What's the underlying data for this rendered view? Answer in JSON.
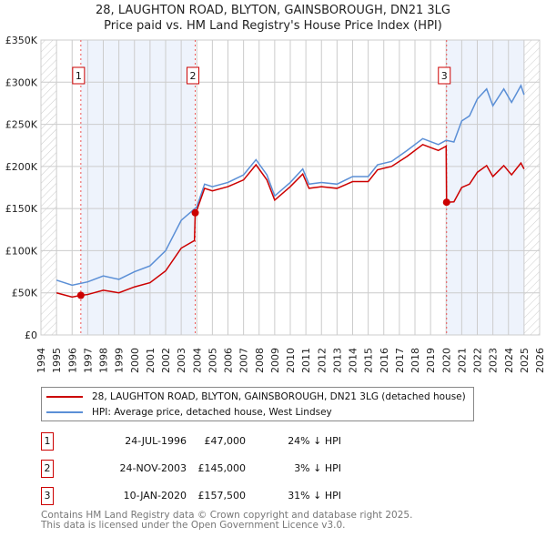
{
  "title_line1": "28, LAUGHTON ROAD, BLYTON, GAINSBOROUGH, DN21 3LG",
  "title_line2": "Price paid vs. HM Land Registry's House Price Index (HPI)",
  "colors": {
    "property": "#cc0000",
    "hpi": "#5b8fd6",
    "shade": "#eef3fc"
  },
  "chart_data": {
    "type": "line",
    "xlim": [
      1994,
      2026
    ],
    "ylim": [
      0,
      350000
    ],
    "x_ticks": [
      1994,
      1995,
      1996,
      1997,
      1998,
      1999,
      2000,
      2001,
      2002,
      2003,
      2004,
      2005,
      2006,
      2007,
      2008,
      2009,
      2010,
      2011,
      2012,
      2013,
      2014,
      2015,
      2016,
      2017,
      2018,
      2019,
      2020,
      2021,
      2022,
      2023,
      2024,
      2025,
      2026
    ],
    "y_ticks": [
      {
        "v": 0,
        "label": "£0"
      },
      {
        "v": 50000,
        "label": "£50K"
      },
      {
        "v": 100000,
        "label": "£100K"
      },
      {
        "v": 150000,
        "label": "£150K"
      },
      {
        "v": 200000,
        "label": "£200K"
      },
      {
        "v": 250000,
        "label": "£250K"
      },
      {
        "v": 300000,
        "label": "£300K"
      },
      {
        "v": 350000,
        "label": "£350K"
      }
    ],
    "grid": true,
    "data_range": [
      1995,
      2025
    ],
    "series": [
      {
        "name": "28, LAUGHTON ROAD, BLYTON, GAINSBOROUGH, DN21 3LG (detached house)",
        "color": "#cc0000",
        "x": [
          1995,
          1996,
          1996.56,
          1997,
          1998,
          1999,
          2000,
          2001,
          2002,
          2003,
          2003.85,
          2003.9,
          2004,
          2004.5,
          2005,
          2006,
          2007,
          2007.8,
          2008.5,
          2009,
          2010,
          2010.8,
          2011.2,
          2012,
          2013,
          2014,
          2015,
          2015.6,
          2016.5,
          2017.5,
          2018.5,
          2019.5,
          2020.0,
          2020.03,
          2020.5,
          2021,
          2021.5,
          2022,
          2022.6,
          2023,
          2023.7,
          2024.2,
          2024.8,
          2025
        ],
        "y": [
          50000,
          45000,
          47000,
          48000,
          53000,
          50000,
          57000,
          62000,
          76000,
          103000,
          112000,
          145000,
          148000,
          174000,
          171000,
          176000,
          184000,
          202000,
          184000,
          160000,
          176000,
          191000,
          174000,
          176000,
          174000,
          182000,
          182000,
          196000,
          200000,
          212000,
          226000,
          219000,
          224000,
          157500,
          158000,
          175000,
          179000,
          193000,
          201000,
          188000,
          201000,
          190000,
          204000,
          197000
        ]
      },
      {
        "name": "HPI: Average price, detached house, West Lindsey",
        "color": "#5b8fd6",
        "x": [
          1995,
          1996,
          1997,
          1998,
          1999,
          2000,
          2001,
          2002,
          2003,
          2004,
          2004.5,
          2005,
          2006,
          2007,
          2007.8,
          2008.5,
          2009,
          2010,
          2010.8,
          2011.2,
          2012,
          2013,
          2014,
          2015,
          2015.6,
          2016.5,
          2017.5,
          2018.5,
          2019.5,
          2020,
          2020.5,
          2021,
          2021.5,
          2022,
          2022.6,
          2023,
          2023.7,
          2024.2,
          2024.8,
          2025
        ],
        "y": [
          65000,
          59000,
          63000,
          70000,
          66000,
          75000,
          82000,
          100000,
          136000,
          152000,
          179000,
          176000,
          181000,
          190000,
          208000,
          190000,
          165000,
          181000,
          197000,
          179000,
          181000,
          179000,
          188000,
          188000,
          202000,
          206000,
          219000,
          233000,
          226000,
          231000,
          229000,
          254000,
          260000,
          280000,
          292000,
          272000,
          292000,
          276000,
          296000,
          285000
        ]
      }
    ],
    "sales": [
      {
        "label": "1",
        "x": 1996.56,
        "price": 47000
      },
      {
        "label": "2",
        "x": 2003.9,
        "price": 145000
      },
      {
        "label": "3",
        "x": 2020.03,
        "price": 157500
      }
    ]
  },
  "legend": {
    "property": "28, LAUGHTON ROAD, BLYTON, GAINSBOROUGH, DN21 3LG (detached house)",
    "hpi": "HPI: Average price, detached house, West Lindsey"
  },
  "transactions": [
    {
      "num": "1",
      "date": "24-JUL-1996",
      "price": "£47,000",
      "hpi": "24% ↓ HPI"
    },
    {
      "num": "2",
      "date": "24-NOV-2003",
      "price": "£145,000",
      "hpi": "3% ↓ HPI"
    },
    {
      "num": "3",
      "date": "10-JAN-2020",
      "price": "£157,500",
      "hpi": "31% ↓ HPI"
    }
  ],
  "footer": {
    "line1": "Contains HM Land Registry data © Crown copyright and database right 2025.",
    "line2": "This data is licensed under the Open Government Licence v3.0."
  }
}
